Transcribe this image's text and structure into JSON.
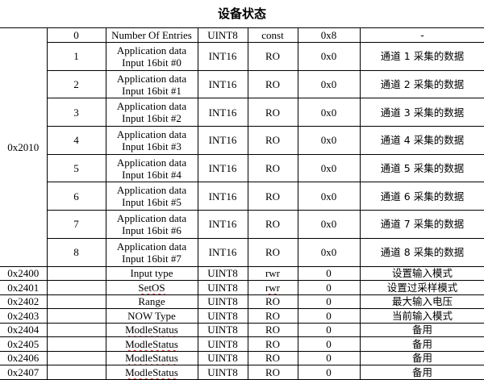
{
  "title": "设备状态",
  "group_index": "0x2010",
  "sub_entries": [
    {
      "sub": "0",
      "name": [
        "Number Of Entries"
      ],
      "type": "UINT8",
      "access": "const",
      "default": "0x8",
      "desc": "-"
    },
    {
      "sub": "1",
      "name": [
        "Application data",
        "Input 16bit #0"
      ],
      "type": "INT16",
      "access": "RO",
      "default": "0x0",
      "desc": "通道 1 采集的数据"
    },
    {
      "sub": "2",
      "name": [
        "Application data",
        "Input 16bit #1"
      ],
      "type": "INT16",
      "access": "RO",
      "default": "0x0",
      "desc": "通道 2 采集的数据"
    },
    {
      "sub": "3",
      "name": [
        "Application data",
        "Input 16bit #2"
      ],
      "type": "INT16",
      "access": "RO",
      "default": "0x0",
      "desc": "通道 3 采集的数据"
    },
    {
      "sub": "4",
      "name": [
        "Application data",
        "Input 16bit #3"
      ],
      "type": "INT16",
      "access": "RO",
      "default": "0x0",
      "desc": "通道 4 采集的数据"
    },
    {
      "sub": "5",
      "name": [
        "Application data",
        "Input 16bit #4"
      ],
      "type": "INT16",
      "access": "RO",
      "default": "0x0",
      "desc": "通道 5 采集的数据"
    },
    {
      "sub": "6",
      "name": [
        "Application data",
        "Input 16bit #5"
      ],
      "type": "INT16",
      "access": "RO",
      "default": "0x0",
      "desc": "通道 6 采集的数据"
    },
    {
      "sub": "7",
      "name": [
        "Application data",
        "Input 16bit #6"
      ],
      "type": "INT16",
      "access": "RO",
      "default": "0x0",
      "desc": "通道 7 采集的数据"
    },
    {
      "sub": "8",
      "name": [
        "Application data",
        "Input 16bit #7"
      ],
      "type": "INT16",
      "access": "RO",
      "default": "0x0",
      "desc": "通道 8 采集的数据"
    }
  ],
  "objects": [
    {
      "index": "0x2400",
      "name": "Input type",
      "type": "UINT8",
      "access": "rwr",
      "default": "0",
      "desc": "设置输入模式"
    },
    {
      "index": "0x2401",
      "name": "SetOS",
      "type": "UINT8",
      "access": "rwr",
      "default": "0",
      "desc": "设置过采样模式",
      "spell": true
    },
    {
      "index": "0x2402",
      "name": "Range",
      "type": "UINT8",
      "access": "RO",
      "default": "0",
      "desc": "最大输入电压"
    },
    {
      "index": "0x2403",
      "name": "NOW Type",
      "type": "UINT8",
      "access": "RO",
      "default": "0",
      "desc": "当前输入模式"
    },
    {
      "index": "0x2404",
      "name": "ModleStatus",
      "type": "UINT8",
      "access": "RO",
      "default": "0",
      "desc": "备用",
      "spell": true
    },
    {
      "index": "0x2405",
      "name": "ModleStatus",
      "type": "UINT8",
      "access": "RO",
      "default": "0",
      "desc": "备用",
      "spell": true
    },
    {
      "index": "0x2406",
      "name": "ModleStatus",
      "type": "UINT8",
      "access": "RO",
      "default": "0",
      "desc": "备用",
      "spell": true
    },
    {
      "index": "0x2407",
      "name": "ModleStatus",
      "type": "UINT8",
      "access": "RO",
      "default": "0",
      "desc": "备用",
      "spell": true
    }
  ]
}
